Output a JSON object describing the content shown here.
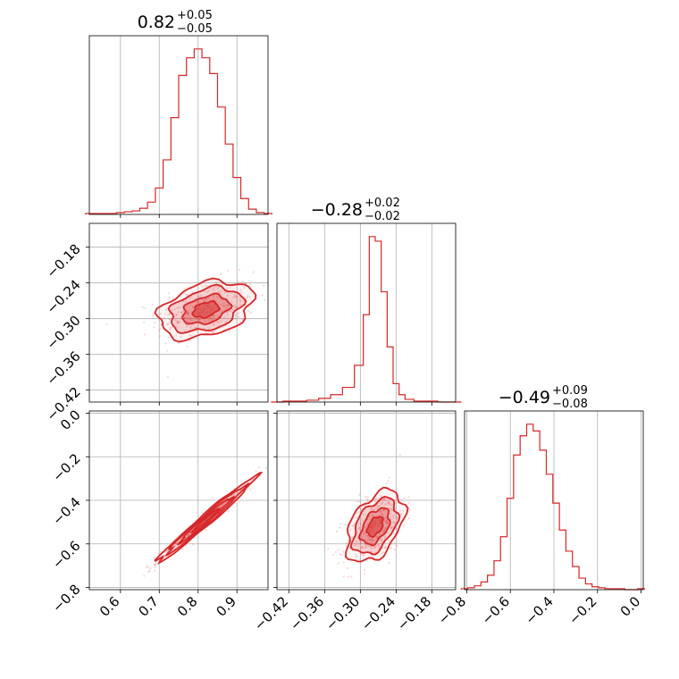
{
  "chart_data": {
    "type": "corner",
    "color": "#d62728",
    "grid": true,
    "parameters": [
      {
        "median": 0.82,
        "plus": 0.05,
        "minus": 0.05,
        "range": [
          0.52,
          0.98
        ],
        "ticks": [
          0.6,
          0.7,
          0.8,
          0.9
        ],
        "tick_labels": [
          "0.6",
          "0.7",
          "0.8",
          "0.9"
        ]
      },
      {
        "median": -0.28,
        "plus": 0.02,
        "minus": 0.02,
        "range": [
          -0.44,
          -0.14
        ],
        "ticks": [
          -0.42,
          -0.36,
          -0.3,
          -0.24,
          -0.18
        ],
        "tick_labels": [
          "−0.42",
          "−0.36",
          "−0.30",
          "−0.24",
          "−0.18"
        ]
      },
      {
        "median": -0.49,
        "plus": 0.09,
        "minus": 0.08,
        "range": [
          -0.81,
          0.01
        ],
        "ticks": [
          -0.8,
          -0.6,
          -0.4,
          -0.2,
          0.0
        ],
        "tick_labels": [
          "−0.8",
          "−0.6",
          "−0.4",
          "−0.2",
          "0.0"
        ]
      }
    ],
    "titles": [
      {
        "value": "0.82",
        "plus": "+0.05",
        "minus": "−0.05"
      },
      {
        "value": "−0.28",
        "plus": "+0.02",
        "minus": "−0.02"
      },
      {
        "value": "−0.49",
        "plus": "+0.09",
        "minus": "−0.08"
      }
    ],
    "histograms": [
      {
        "param": 0,
        "x": [
          0.52,
          0.54,
          0.56,
          0.58,
          0.6,
          0.62,
          0.64,
          0.66,
          0.68,
          0.7,
          0.72,
          0.74,
          0.76,
          0.78,
          0.8,
          0.82,
          0.84,
          0.86,
          0.88,
          0.9,
          0.92,
          0.94,
          0.96,
          0.98
        ],
        "values": [
          1,
          1,
          1,
          1,
          2,
          3,
          4,
          7,
          14,
          30,
          62,
          110,
          158,
          178,
          188,
          178,
          160,
          122,
          80,
          42,
          18,
          6,
          2,
          1
        ]
      },
      {
        "param": 1,
        "x": [
          -0.44,
          -0.42,
          -0.4,
          -0.38,
          -0.36,
          -0.34,
          -0.32,
          -0.3,
          -0.29,
          -0.28,
          -0.27,
          -0.26,
          -0.25,
          -0.24,
          -0.23,
          -0.22,
          -0.2,
          -0.18,
          -0.16,
          -0.14
        ],
        "values": [
          0,
          1,
          1,
          2,
          4,
          8,
          16,
          40,
          95,
          180,
          175,
          120,
          60,
          20,
          8,
          3,
          1,
          1,
          0,
          0
        ]
      },
      {
        "param": 2,
        "x": [
          -0.81,
          -0.78,
          -0.75,
          -0.72,
          -0.69,
          -0.66,
          -0.63,
          -0.6,
          -0.57,
          -0.54,
          -0.51,
          -0.48,
          -0.45,
          -0.42,
          -0.39,
          -0.36,
          -0.33,
          -0.3,
          -0.27,
          -0.24,
          -0.21,
          -0.18,
          -0.15,
          -0.12,
          -0.09,
          -0.06,
          -0.03,
          0.0
        ],
        "values": [
          1,
          2,
          4,
          8,
          15,
          30,
          55,
          95,
          140,
          160,
          172,
          165,
          145,
          120,
          90,
          62,
          40,
          24,
          12,
          6,
          3,
          2,
          1,
          1,
          1,
          0,
          0,
          1
        ]
      }
    ],
    "pairs": [
      {
        "x_param": 0,
        "y_param": 1,
        "center": [
          0.82,
          -0.285
        ],
        "spread": [
          0.055,
          0.022
        ],
        "rho": 0.35,
        "n_points": 380,
        "levels": [
          0.6,
          1.1,
          1.7,
          2.2
        ]
      },
      {
        "x_param": 0,
        "y_param": 2,
        "center": [
          0.82,
          -0.49
        ],
        "spread": [
          0.055,
          0.085
        ],
        "rho": 0.985,
        "n_points": 320,
        "levels": [
          0.6,
          1.2,
          1.8,
          2.3
        ]
      },
      {
        "x_param": 1,
        "y_param": 2,
        "center": [
          -0.275,
          -0.52
        ],
        "spread": [
          0.022,
          0.075
        ],
        "rho": 0.45,
        "n_points": 380,
        "levels": [
          0.6,
          1.1,
          1.7,
          2.2
        ]
      }
    ]
  }
}
